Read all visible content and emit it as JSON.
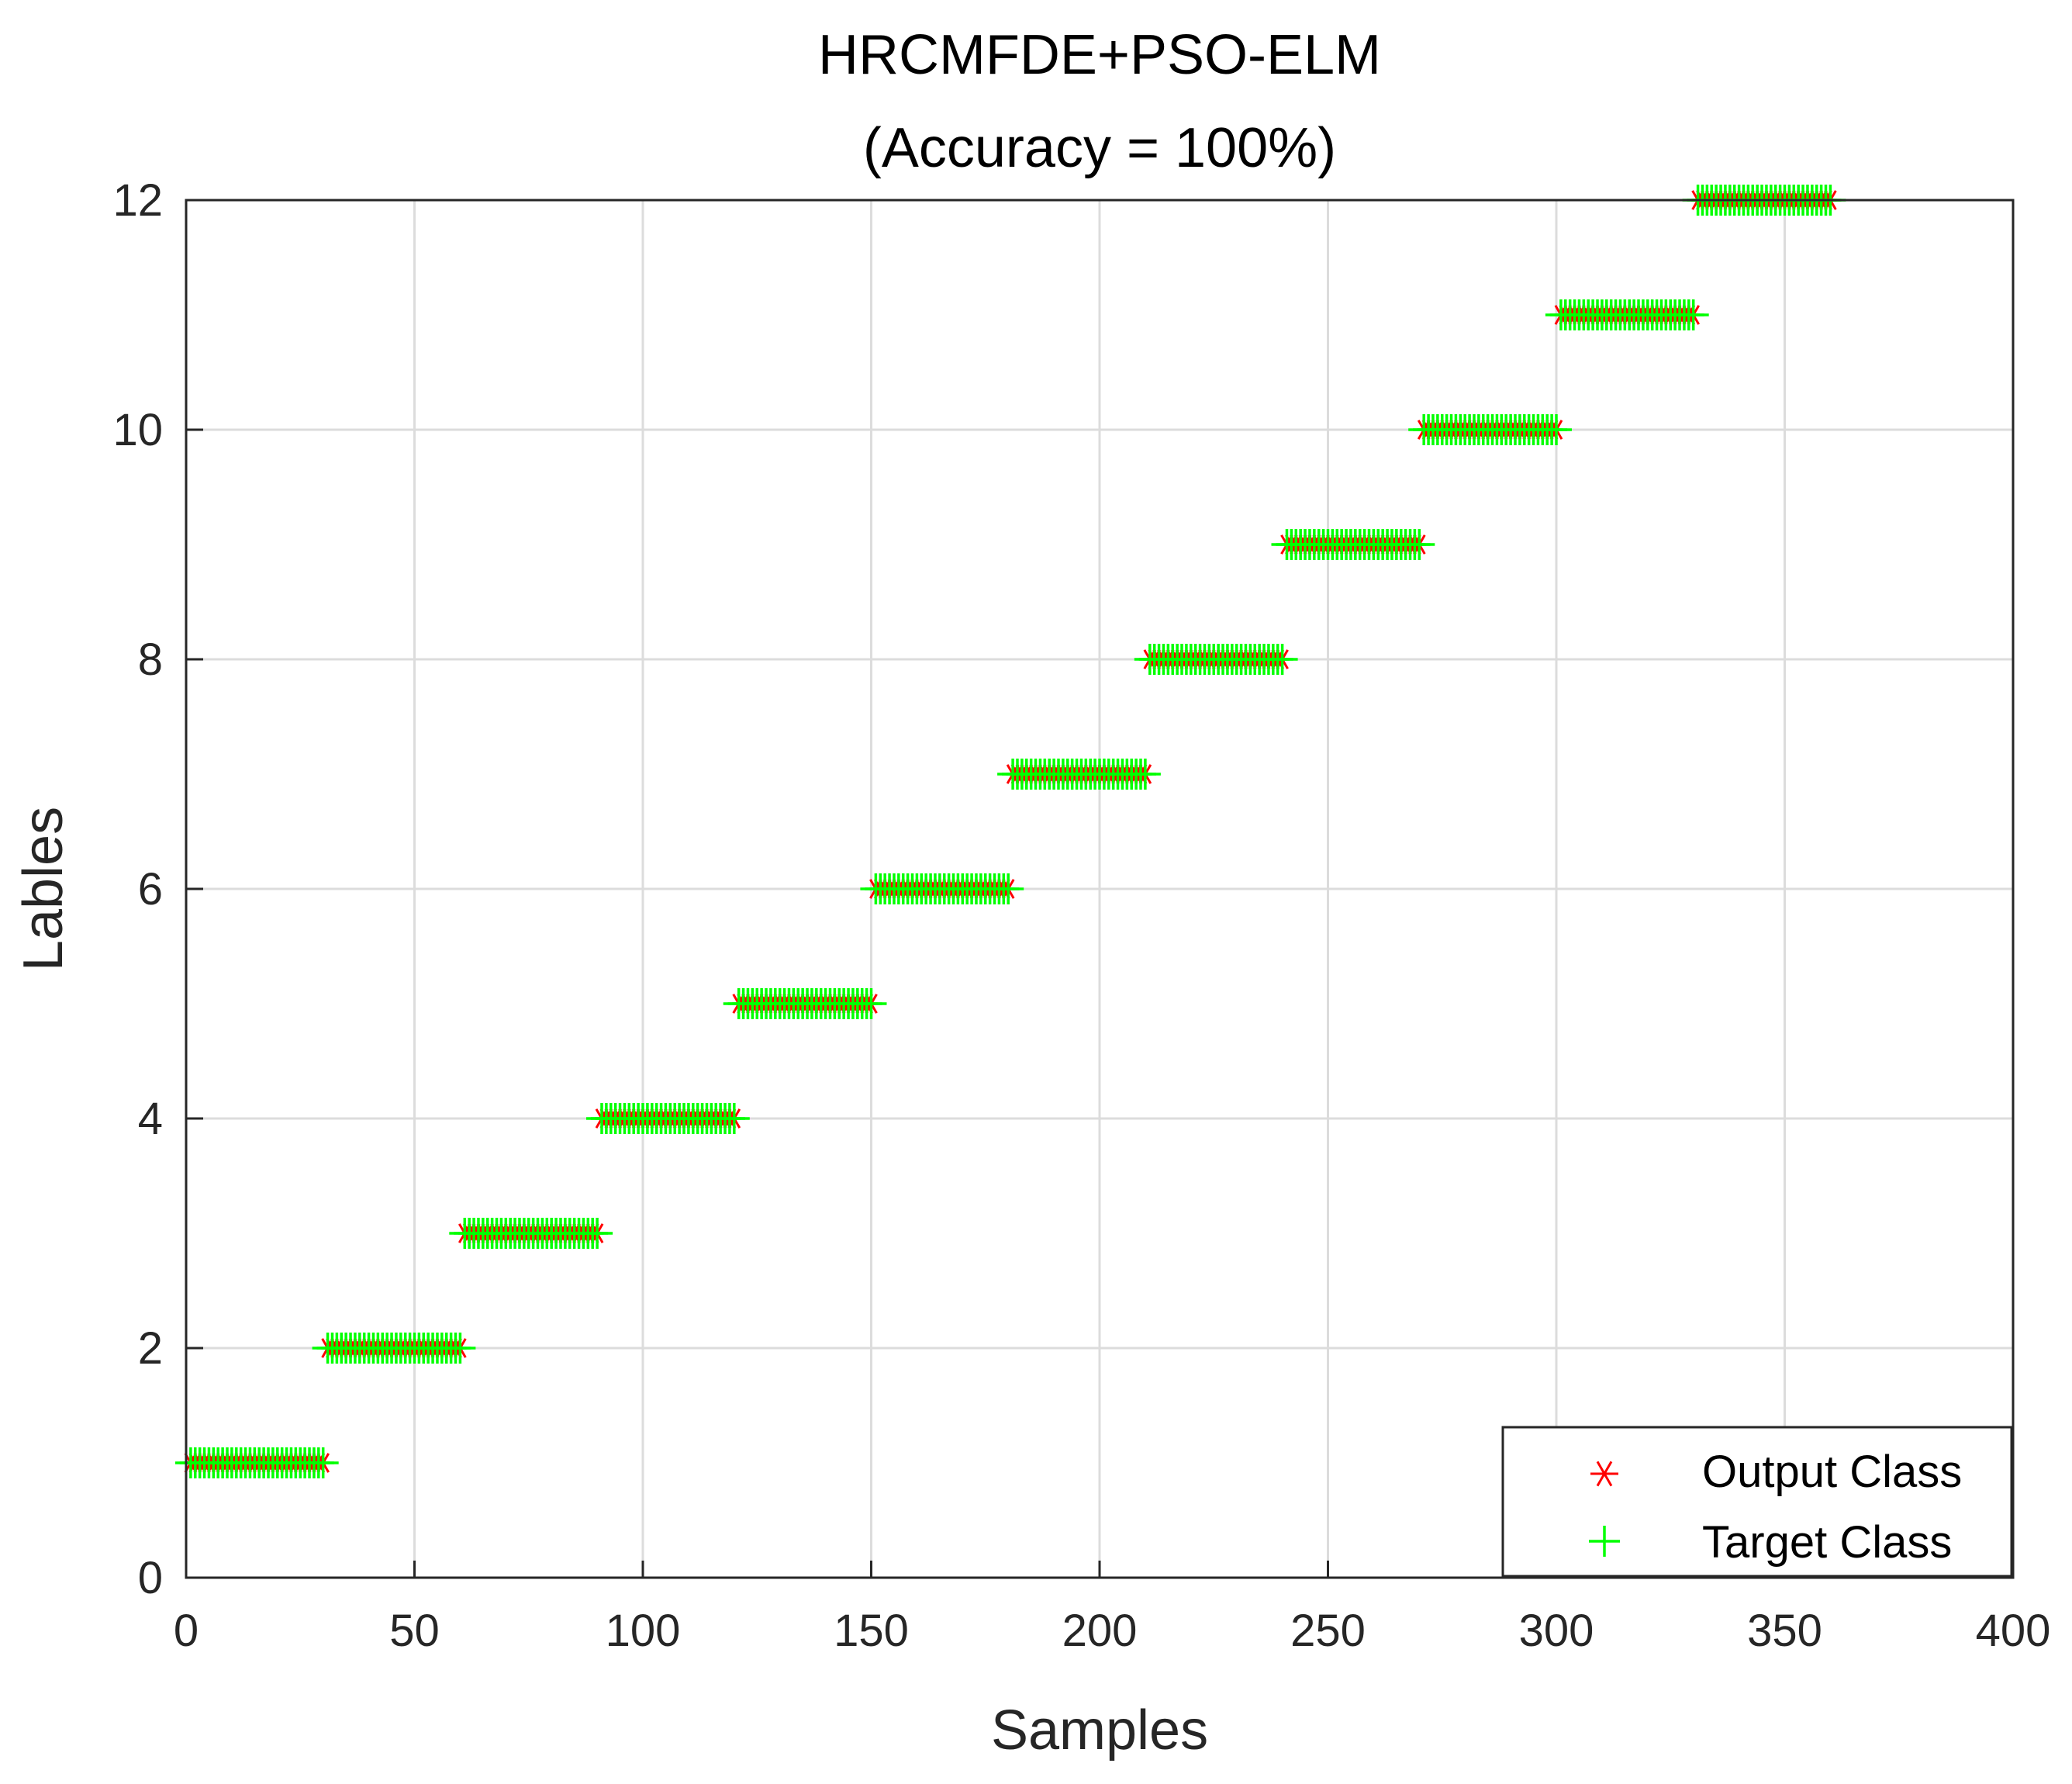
{
  "chart_data": {
    "type": "scatter",
    "title": "HRCMFDE+PSO-ELM",
    "subtitle": "(Accuracy = 100%)",
    "xlabel": "Samples",
    "ylabel": "Lables",
    "xlim": [
      0,
      400
    ],
    "ylim": [
      0,
      12
    ],
    "xticks": [
      "0",
      "50",
      "100",
      "150",
      "200",
      "250",
      "300",
      "350",
      "400"
    ],
    "yticks": [
      "0",
      "2",
      "4",
      "6",
      "8",
      "10",
      "12"
    ],
    "grid": true,
    "legend_position": "bottom-right",
    "samples_per_class": 30,
    "classes": [
      1,
      2,
      3,
      4,
      5,
      6,
      7,
      8,
      9,
      10,
      11,
      12
    ],
    "series": [
      {
        "name": "Output Class",
        "marker": "asterisk",
        "color": "#ff0000",
        "segments": [
          {
            "label": 1,
            "x_start": 1,
            "x_end": 30
          },
          {
            "label": 2,
            "x_start": 31,
            "x_end": 60
          },
          {
            "label": 3,
            "x_start": 61,
            "x_end": 90
          },
          {
            "label": 4,
            "x_start": 91,
            "x_end": 120
          },
          {
            "label": 5,
            "x_start": 121,
            "x_end": 150
          },
          {
            "label": 6,
            "x_start": 151,
            "x_end": 180
          },
          {
            "label": 7,
            "x_start": 181,
            "x_end": 210
          },
          {
            "label": 8,
            "x_start": 211,
            "x_end": 240
          },
          {
            "label": 9,
            "x_start": 241,
            "x_end": 270
          },
          {
            "label": 10,
            "x_start": 271,
            "x_end": 300
          },
          {
            "label": 11,
            "x_start": 301,
            "x_end": 330
          },
          {
            "label": 12,
            "x_start": 331,
            "x_end": 360
          }
        ]
      },
      {
        "name": "Target Class",
        "marker": "plus",
        "color": "#00ff00",
        "segments": [
          {
            "label": 1,
            "x_start": 1,
            "x_end": 30
          },
          {
            "label": 2,
            "x_start": 31,
            "x_end": 60
          },
          {
            "label": 3,
            "x_start": 61,
            "x_end": 90
          },
          {
            "label": 4,
            "x_start": 91,
            "x_end": 120
          },
          {
            "label": 5,
            "x_start": 121,
            "x_end": 150
          },
          {
            "label": 6,
            "x_start": 151,
            "x_end": 180
          },
          {
            "label": 7,
            "x_start": 181,
            "x_end": 210
          },
          {
            "label": 8,
            "x_start": 211,
            "x_end": 240
          },
          {
            "label": 9,
            "x_start": 241,
            "x_end": 270
          },
          {
            "label": 10,
            "x_start": 271,
            "x_end": 300
          },
          {
            "label": 11,
            "x_start": 301,
            "x_end": 330
          },
          {
            "label": 12,
            "x_start": 331,
            "x_end": 360
          }
        ]
      }
    ]
  }
}
